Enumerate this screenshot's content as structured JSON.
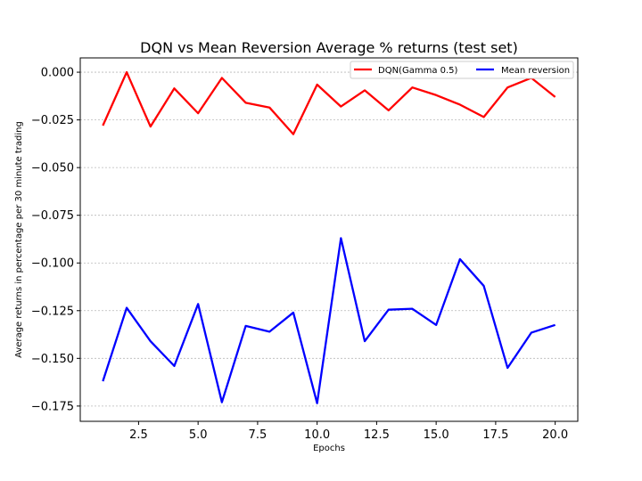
{
  "chart_data": {
    "type": "line",
    "title": "DQN vs Mean Reversion Average % returns (test set)",
    "xlabel": "Epochs",
    "ylabel": "Average returns in percentage per 30 minute trading",
    "xlim": [
      0.05,
      20.95
    ],
    "ylim": [
      -0.183,
      0.0075
    ],
    "xticks": [
      2.5,
      5.0,
      7.5,
      10.0,
      12.5,
      15.0,
      17.5,
      20.0
    ],
    "xtick_labels": [
      "2.5",
      "5.0",
      "7.5",
      "10.0",
      "12.5",
      "15.0",
      "17.5",
      "20.0"
    ],
    "yticks": [
      0.0,
      -0.025,
      -0.05,
      -0.075,
      -0.1,
      -0.125,
      -0.15,
      -0.175
    ],
    "ytick_labels": [
      "0.000",
      "−0.025",
      "−0.050",
      "−0.075",
      "−0.100",
      "−0.125",
      "−0.150",
      "−0.175"
    ],
    "grid": "horizontal",
    "legend_position": "top-right",
    "x": [
      1,
      2,
      3,
      4,
      5,
      6,
      7,
      8,
      9,
      10,
      11,
      12,
      13,
      14,
      15,
      16,
      17,
      18,
      19,
      20
    ],
    "series": [
      {
        "name": "DQN(Gamma 0.5)",
        "color": "#ff0000",
        "values": [
          -0.028,
          0.0,
          -0.0285,
          -0.0085,
          -0.0215,
          -0.003,
          -0.016,
          -0.0185,
          -0.0325,
          -0.0065,
          -0.018,
          -0.0095,
          -0.02,
          -0.008,
          -0.012,
          -0.017,
          -0.0235,
          -0.008,
          -0.003,
          -0.013
        ]
      },
      {
        "name": "Mean reversion",
        "color": "#0000ff",
        "values": [
          -0.162,
          -0.1235,
          -0.141,
          -0.154,
          -0.1215,
          -0.173,
          -0.133,
          -0.136,
          -0.126,
          -0.1735,
          -0.087,
          -0.141,
          -0.1245,
          -0.124,
          -0.1325,
          -0.098,
          -0.112,
          -0.155,
          -0.1365,
          -0.1325
        ]
      }
    ]
  }
}
